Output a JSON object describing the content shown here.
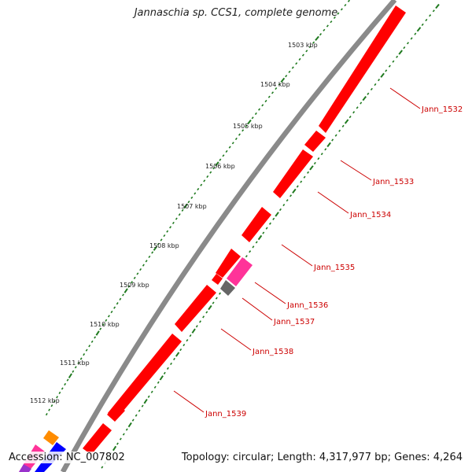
{
  "title": "Jannaschia sp. CCS1, complete genome",
  "footer": {
    "accession": "Accession: NC_007802",
    "summary": "Topology: circular; Length: 4,317,977 bp; Genes: 4,264"
  },
  "colors": {
    "backbone": "#8a8a8a",
    "tick": "#1f7a1f",
    "gene_forward": "#ff0000",
    "gene_pink": "#ff3399",
    "gene_gray": "#666666",
    "gene_orange": "#ff8c00",
    "gene_blue": "#0000ff",
    "gene_label": "#cc0000"
  },
  "kbp_labels": [
    "1503 kbp",
    "1504 kbp",
    "1505 kbp",
    "1506 kbp",
    "1507 kbp",
    "1508 kbp",
    "1509 kbp",
    "1510 kbp",
    "1511 kbp",
    "1512 kbp"
  ],
  "gene_labels": [
    "Jann_1532",
    "Jann_1533",
    "Jann_1534",
    "Jann_1535",
    "Jann_1536",
    "Jann_1537",
    "Jann_1538",
    "Jann_1539"
  ]
}
